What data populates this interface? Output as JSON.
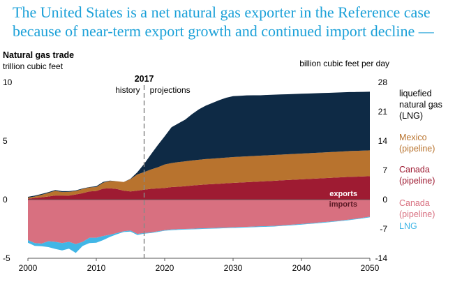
{
  "headline": {
    "line1": "The United States is a net natural gas exporter in the Reference case",
    "line2": "because of near-term export growth and continued import decline —"
  },
  "chart_data": {
    "type": "area",
    "title": "Natural gas trade",
    "ylabel_left": "trillion cubic feet",
    "ylabel_right": "billion cubic feet per day",
    "x_ticks": [
      "2000",
      "2010",
      "2020",
      "2030",
      "2040",
      "2050"
    ],
    "xlim": [
      2000,
      2050
    ],
    "ylim_left": [
      -5,
      10
    ],
    "y_ticks_left": [
      "10",
      "5",
      "0",
      "-5"
    ],
    "y_ticks_right": [
      "28",
      "21",
      "14",
      "7",
      "0",
      "-7",
      "-14"
    ],
    "divider": {
      "year": 2017,
      "label": "2017",
      "left_label": "history",
      "right_label": "projections"
    },
    "exports_label": "exports",
    "imports_label": "imports",
    "colors": {
      "lng_exports": "#0e2a45",
      "mexico": "#b8732e",
      "canada_exports": "#9e1b32",
      "canada_imports": "#d87080",
      "lng_imports": "#41b6e6"
    },
    "x": [
      2000,
      2001,
      2002,
      2003,
      2004,
      2005,
      2006,
      2007,
      2008,
      2009,
      2010,
      2011,
      2012,
      2013,
      2014,
      2015,
      2016,
      2017,
      2018,
      2019,
      2020,
      2021,
      2022,
      2023,
      2024,
      2025,
      2026,
      2027,
      2028,
      2029,
      2030,
      2031,
      2032,
      2033,
      2034,
      2035,
      2036,
      2037,
      2038,
      2039,
      2040,
      2041,
      2042,
      2043,
      2044,
      2045,
      2046,
      2047,
      2048,
      2049,
      2050
    ],
    "series": [
      {
        "key": "canada_exports",
        "name": "Canada (pipeline)",
        "type": "export",
        "values": [
          0.07,
          0.14,
          0.2,
          0.27,
          0.35,
          0.35,
          0.34,
          0.44,
          0.55,
          0.7,
          0.74,
          0.94,
          0.97,
          0.91,
          0.77,
          0.7,
          0.77,
          0.85,
          0.92,
          0.96,
          1.0,
          1.07,
          1.1,
          1.15,
          1.2,
          1.25,
          1.3,
          1.33,
          1.36,
          1.4,
          1.43,
          1.46,
          1.49,
          1.52,
          1.55,
          1.58,
          1.61,
          1.64,
          1.67,
          1.7,
          1.73,
          1.76,
          1.79,
          1.82,
          1.85,
          1.88,
          1.91,
          1.94,
          1.96,
          1.98,
          2.0
        ]
      },
      {
        "key": "mexico",
        "name": "Mexico (pipeline)",
        "type": "export",
        "values": [
          0.1,
          0.13,
          0.21,
          0.3,
          0.4,
          0.3,
          0.32,
          0.3,
          0.36,
          0.34,
          0.33,
          0.5,
          0.62,
          0.66,
          0.73,
          1.05,
          1.38,
          1.5,
          1.65,
          1.8,
          2.0,
          2.05,
          2.1,
          2.12,
          2.14,
          2.15,
          2.16,
          2.17,
          2.18,
          2.19,
          2.2,
          2.2,
          2.2,
          2.2,
          2.2,
          2.2,
          2.2,
          2.2,
          2.2,
          2.2,
          2.2,
          2.2,
          2.2,
          2.2,
          2.2,
          2.2,
          2.2,
          2.2,
          2.2,
          2.2,
          2.2
        ]
      },
      {
        "key": "lng_exports",
        "name": "liquefied natural gas (LNG)",
        "type": "export",
        "values": [
          0.07,
          0.07,
          0.07,
          0.07,
          0.07,
          0.07,
          0.06,
          0.05,
          0.04,
          0.03,
          0.07,
          0.07,
          0.03,
          0.0,
          0.0,
          0.03,
          0.19,
          0.7,
          1.3,
          1.9,
          2.4,
          3.05,
          3.3,
          3.55,
          3.95,
          4.3,
          4.55,
          4.75,
          4.95,
          5.1,
          5.2,
          5.2,
          5.2,
          5.18,
          5.15,
          5.15,
          5.14,
          5.13,
          5.12,
          5.11,
          5.1,
          5.09,
          5.08,
          5.07,
          5.06,
          5.05,
          5.04,
          5.03,
          5.02,
          5.01,
          5.0
        ]
      },
      {
        "key": "canada_imports",
        "name": "Canada (pipeline)",
        "type": "import",
        "values": [
          3.45,
          3.7,
          3.75,
          3.55,
          3.6,
          3.7,
          3.6,
          3.8,
          3.6,
          3.25,
          3.25,
          3.1,
          3.0,
          2.85,
          2.7,
          2.63,
          2.92,
          2.85,
          2.8,
          2.7,
          2.6,
          2.55,
          2.52,
          2.5,
          2.48,
          2.46,
          2.44,
          2.42,
          2.4,
          2.38,
          2.36,
          2.34,
          2.32,
          2.3,
          2.28,
          2.26,
          2.24,
          2.2,
          2.16,
          2.12,
          2.08,
          2.03,
          1.98,
          1.93,
          1.88,
          1.82,
          1.76,
          1.7,
          1.62,
          1.54,
          1.45
        ]
      },
      {
        "key": "lng_imports",
        "name": "LNG",
        "type": "import",
        "values": [
          0.22,
          0.24,
          0.22,
          0.5,
          0.6,
          0.63,
          0.58,
          0.75,
          0.35,
          0.45,
          0.43,
          0.35,
          0.18,
          0.1,
          0.06,
          0.09,
          0.09,
          0.05,
          0.05,
          0.05,
          0.05,
          0.05,
          0.05,
          0.05,
          0.05,
          0.05,
          0.05,
          0.05,
          0.05,
          0.05,
          0.05,
          0.05,
          0.05,
          0.05,
          0.05,
          0.05,
          0.05,
          0.05,
          0.05,
          0.05,
          0.05,
          0.05,
          0.05,
          0.05,
          0.05,
          0.05,
          0.05,
          0.05,
          0.05,
          0.05,
          0.05
        ]
      }
    ],
    "legend": [
      {
        "key": "lng_exports",
        "lines": [
          "liquefied",
          "natural gas",
          "(LNG)"
        ]
      },
      {
        "key": "mexico",
        "lines": [
          "Mexico",
          "(pipeline)"
        ]
      },
      {
        "key": "canada_exports",
        "lines": [
          "Canada",
          "(pipeline)"
        ]
      },
      {
        "key": "canada_imports",
        "lines": [
          "Canada",
          "(pipeline)"
        ]
      },
      {
        "key": "lng_imports",
        "lines": [
          "LNG"
        ]
      }
    ]
  }
}
